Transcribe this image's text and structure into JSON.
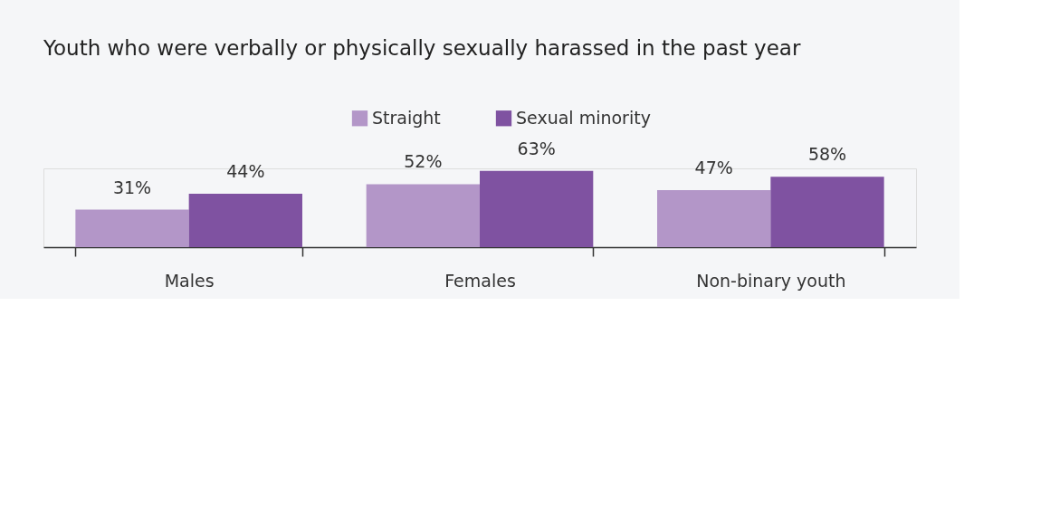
{
  "chart_data": {
    "type": "bar",
    "title": "Youth who were verbally or physically sexually harassed in the past year",
    "categories": [
      "Males",
      "Females",
      "Non-binary youth"
    ],
    "series": [
      {
        "name": "Straight",
        "color": "#b396c8",
        "values": [
          31,
          52,
          47
        ],
        "value_labels": [
          "31%",
          "52%",
          "47%"
        ]
      },
      {
        "name": "Sexual minority",
        "color": "#7f52a1",
        "values": [
          44,
          63,
          58
        ],
        "value_labels": [
          "44%",
          "63%",
          "58%"
        ]
      }
    ],
    "legend": "top",
    "grid": false,
    "tick_labels": "x"
  }
}
